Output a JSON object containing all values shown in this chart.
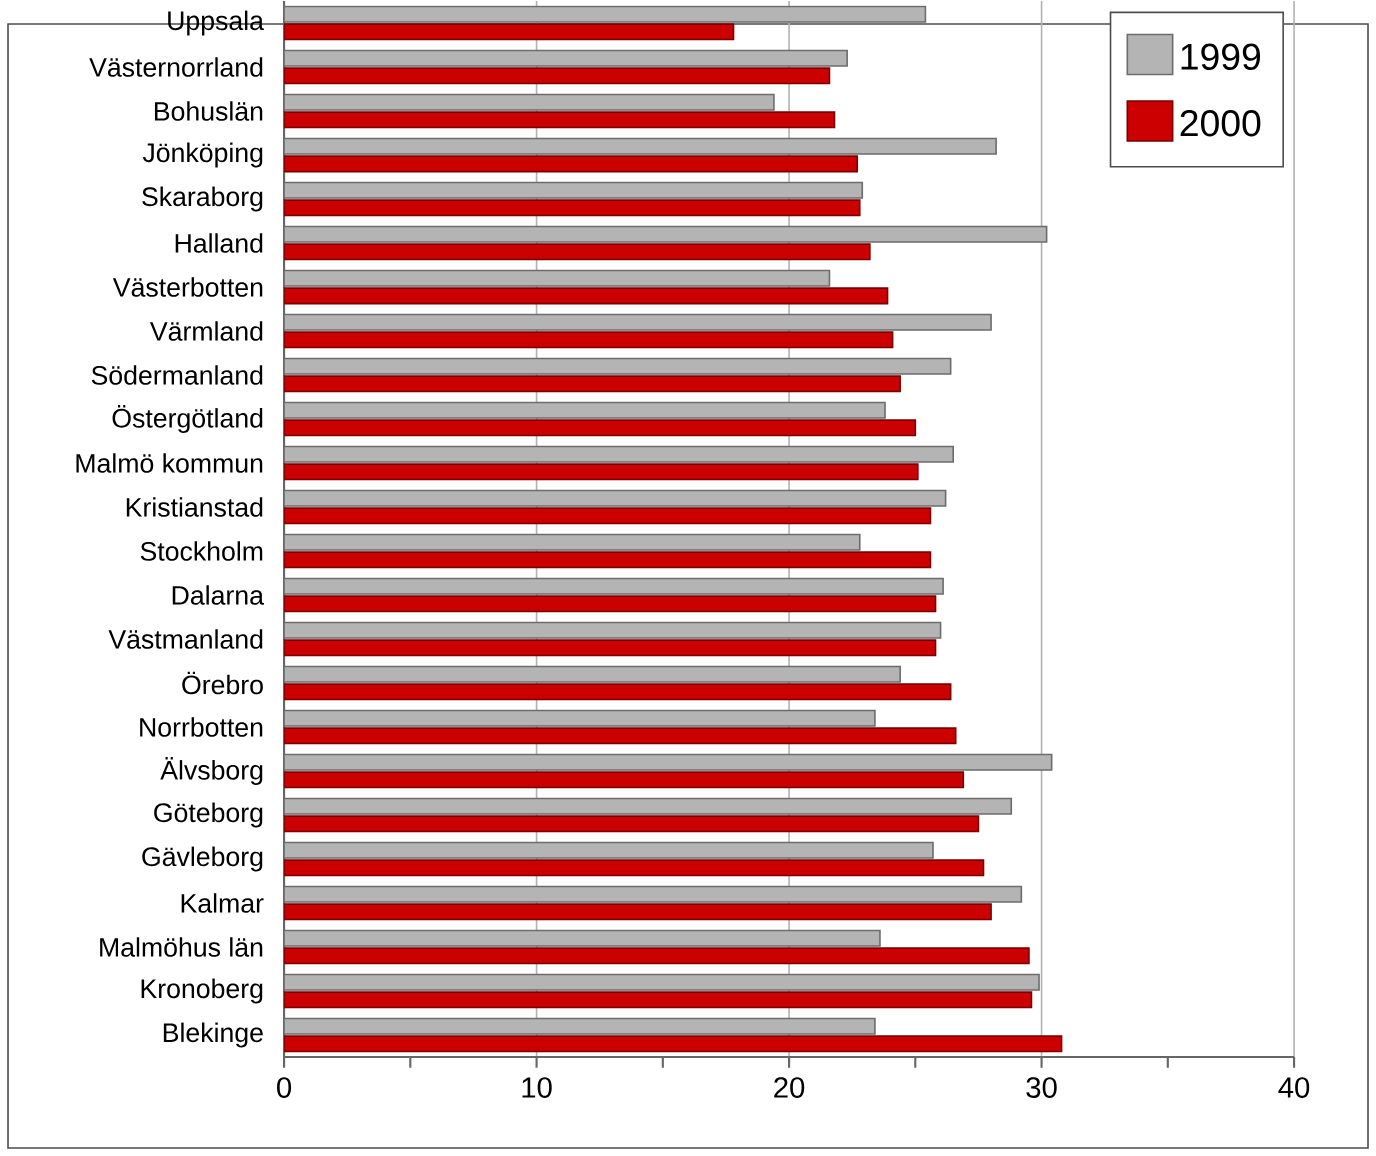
{
  "chart_data": {
    "type": "bar",
    "orientation": "horizontal",
    "categories": [
      "Uppsala",
      "Västernorrland",
      "Bohuslän",
      "Jönköping",
      "Skaraborg",
      "Halland",
      "Västerbotten",
      "Värmland",
      "Södermanland",
      "Östergötland",
      "Malmö kommun",
      "Kristianstad",
      "Stockholm",
      "Dalarna",
      "Västmanland",
      "Örebro",
      "Norrbotten",
      "Älvsborg",
      "Göteborg",
      "Gävleborg",
      "Kalmar",
      "Malmöhus län",
      "Kronoberg",
      "Blekinge"
    ],
    "series": [
      {
        "name": "1999",
        "color": "#b4b4b4",
        "values": [
          25.4,
          22.3,
          19.4,
          28.2,
          22.9,
          30.2,
          21.6,
          28.0,
          26.4,
          23.8,
          26.5,
          26.2,
          22.8,
          26.1,
          26.0,
          24.4,
          23.4,
          30.4,
          28.8,
          25.7,
          29.2,
          23.6,
          29.9,
          23.4
        ]
      },
      {
        "name": "2000",
        "color": "#cc0000",
        "values": [
          17.8,
          21.6,
          21.8,
          22.7,
          22.8,
          23.2,
          23.9,
          24.1,
          24.4,
          25.0,
          25.1,
          25.6,
          25.6,
          25.8,
          25.8,
          26.4,
          26.6,
          26.9,
          27.5,
          27.7,
          28.0,
          29.5,
          29.6,
          30.8
        ]
      }
    ],
    "xlim": [
      0,
      40
    ],
    "xticks": [
      0,
      {
        "value": 5,
        "label": null
      },
      10,
      {
        "value": 15,
        "label": null
      },
      20,
      {
        "value": 25,
        "label": null
      },
      30,
      {
        "value": 35,
        "label": null
      },
      40
    ],
    "grid": "x",
    "legend": "top right"
  }
}
